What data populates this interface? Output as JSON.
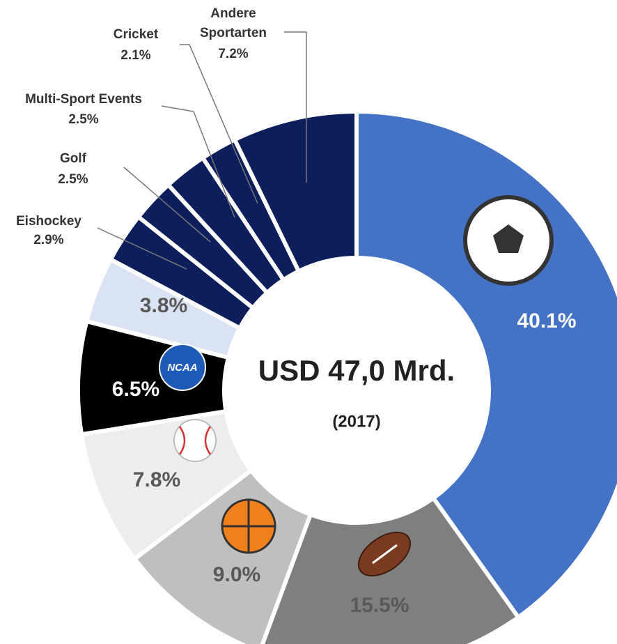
{
  "chart_data": {
    "type": "pie",
    "center_text": "USD 47,0 Mrd.",
    "center_subtext": "(2017)",
    "logo_text": "NCAA",
    "categories": [
      null,
      null,
      null,
      null,
      null,
      null,
      "Eishockey",
      "Golf",
      "Multi-Sport Events",
      "Cricket",
      "Andere Sportarten"
    ],
    "values": [
      40.1,
      15.5,
      9.0,
      7.8,
      6.5,
      3.8,
      2.9,
      2.5,
      2.5,
      2.1,
      7.2
    ],
    "value_labels": [
      "40.1%",
      "15.5%",
      "9.0%",
      "7.8%",
      "6.5%",
      "3.8%",
      "2.9%",
      "2.5%",
      "2.5%",
      "2.1%",
      "7.2%"
    ],
    "colors": [
      "#4472c4",
      "#7f7f7f",
      "#bfbfbf",
      "#ededed",
      "#000000",
      "#dae3f3",
      "#0c1f5c",
      "#0c1f5c",
      "#0c1f5c",
      "#0c1f5c",
      "#0c1f5c"
    ]
  }
}
